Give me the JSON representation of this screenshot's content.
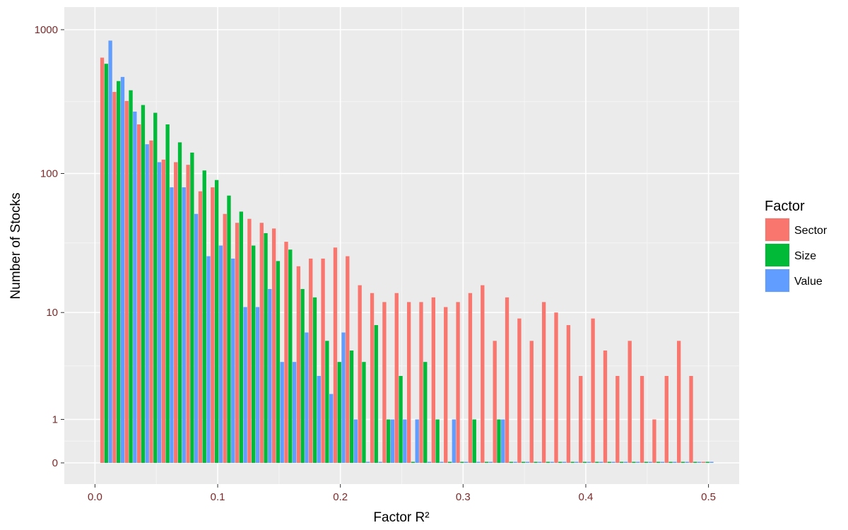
{
  "chart_data": {
    "type": "bar",
    "title": "",
    "xlabel": "Factor R²",
    "ylabel": "Number of Stocks",
    "xlim": [
      -0.025,
      0.525
    ],
    "y_scale": "log1p",
    "x_ticks": [
      "0.0",
      "0.1",
      "0.2",
      "0.3",
      "0.4",
      "0.5"
    ],
    "y_ticks": [
      "0",
      "1",
      "10",
      "100",
      "1000"
    ],
    "grid": true,
    "legend": {
      "title": "Factor",
      "position": "right"
    },
    "x": [
      0.01,
      0.02,
      0.03,
      0.04,
      0.05,
      0.06,
      0.07,
      0.08,
      0.09,
      0.1,
      0.11,
      0.12,
      0.13,
      0.14,
      0.15,
      0.16,
      0.17,
      0.18,
      0.19,
      0.2,
      0.21,
      0.22,
      0.23,
      0.24,
      0.25,
      0.26,
      0.27,
      0.28,
      0.29,
      0.3,
      0.31,
      0.32,
      0.33,
      0.34,
      0.35,
      0.36,
      0.37,
      0.38,
      0.39,
      0.4,
      0.41,
      0.42,
      0.43,
      0.44,
      0.45,
      0.46,
      0.47,
      0.48,
      0.49,
      0.5
    ],
    "series": [
      {
        "name": "Sector",
        "color": "#F8766D",
        "values": [
          640,
          370,
          320,
          220,
          170,
          125,
          120,
          115,
          75,
          80,
          52,
          45,
          48,
          45,
          41,
          33,
          22,
          25,
          25,
          30,
          26,
          16,
          14,
          12,
          14,
          12,
          12,
          13,
          11,
          12,
          14,
          16,
          6,
          13,
          9,
          6,
          12,
          10,
          8,
          3,
          9,
          5,
          3,
          6,
          3,
          1,
          3,
          6,
          3,
          0
        ]
      },
      {
        "name": "Size",
        "color": "#00BA38",
        "values": [
          580,
          440,
          380,
          300,
          265,
          220,
          165,
          140,
          105,
          90,
          70,
          54,
          31,
          38,
          24,
          29,
          15,
          13,
          6,
          4,
          5,
          4,
          8,
          1,
          3,
          0,
          4,
          1,
          0,
          0,
          1,
          0,
          1,
          0,
          0,
          0,
          0,
          0,
          0,
          0,
          0,
          0,
          0,
          0,
          0,
          0,
          0,
          0,
          0,
          0
        ]
      },
      {
        "name": "Value",
        "color": "#619CFF",
        "values": [
          840,
          470,
          270,
          160,
          120,
          80,
          80,
          52,
          26,
          31,
          25,
          11,
          11,
          15,
          4,
          4,
          7,
          3,
          2,
          7,
          1,
          0,
          0,
          1,
          1,
          1,
          0,
          0,
          1,
          0,
          0,
          0,
          1,
          0,
          0,
          0,
          0,
          0,
          0,
          0,
          0,
          0,
          0,
          0,
          0,
          0,
          0,
          0,
          0,
          0
        ]
      }
    ]
  }
}
